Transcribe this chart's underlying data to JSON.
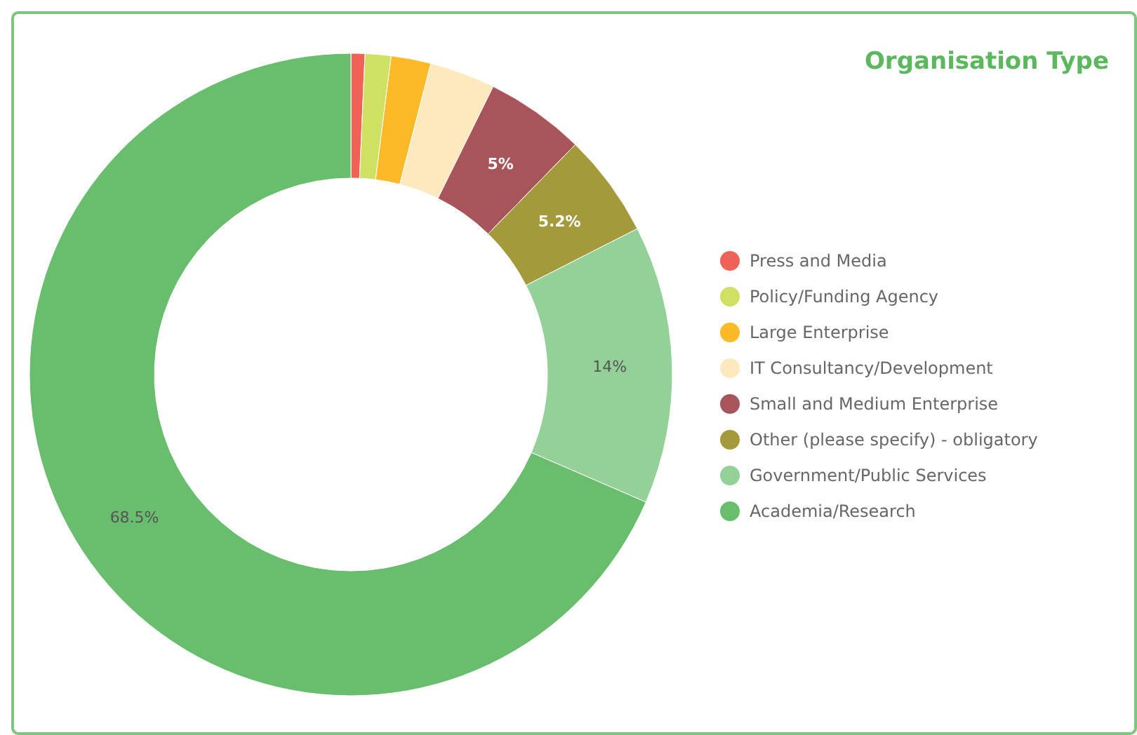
{
  "chart_data": {
    "type": "donut",
    "title": "Organisation Type",
    "categories": [
      "Press and Media",
      "Policy/Funding Agency",
      "Large Enterprise",
      "IT Consultancy/Development",
      "Small and Medium Enterprise",
      "Other (please specify) - obligatory",
      "Government/Public Services",
      "Academia/Research"
    ],
    "values": [
      0.7,
      1.3,
      2,
      3.3,
      5,
      5.2,
      14,
      68.5
    ],
    "colors": [
      "#ef6258",
      "#cfe063",
      "#fdb927",
      "#fde9bd",
      "#a8545b",
      "#a49a3c",
      "#94d199",
      "#69be6e"
    ],
    "value_labels": [
      null,
      null,
      null,
      null,
      "5%",
      "5.2%",
      "14%",
      "68.5%"
    ],
    "legend": "right"
  }
}
